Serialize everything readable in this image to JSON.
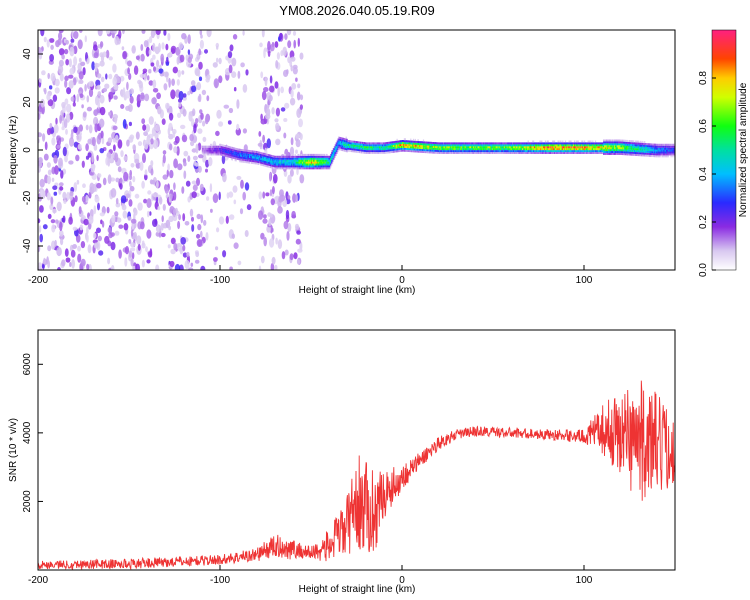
{
  "title": "YM08.2026.040.05.19.R09",
  "chart_data": [
    {
      "type": "heatmap",
      "xlabel": "Height of straight line (km)",
      "ylabel": "Frequency (Hz)",
      "xlim": [
        -200,
        150
      ],
      "ylim": [
        -50,
        50
      ],
      "xticks": [
        -200,
        -100,
        0,
        100
      ],
      "xtick_labels": [
        "-200",
        "-100",
        "0",
        "100"
      ],
      "yticks": [
        -40,
        -20,
        0,
        20,
        40
      ],
      "ytick_labels": [
        "-40",
        "-20",
        "0",
        "20",
        "40"
      ],
      "colorbar": {
        "label": "Normalized spectral amplitude",
        "range": [
          0,
          1
        ],
        "ticks": [
          0,
          0.2,
          0.4,
          0.6,
          0.8
        ],
        "tick_labels": [
          "0.0",
          "0.2",
          "0.4",
          "0.6",
          "0.8"
        ],
        "colormap": "gist_rainbow_r"
      },
      "ridge": {
        "x": [
          -110,
          -100,
          -90,
          -80,
          -70,
          -60,
          -50,
          -40,
          -35,
          -30,
          -20,
          -10,
          0,
          20,
          40,
          60,
          80,
          100,
          120,
          140,
          150
        ],
        "frequency": [
          0,
          0,
          -2,
          -3,
          -5,
          -5,
          -5,
          -5,
          3,
          2,
          1,
          1,
          2,
          1,
          1,
          1,
          1,
          1,
          1,
          0,
          0
        ],
        "amplitude": [
          0.15,
          0.25,
          0.35,
          0.4,
          0.45,
          0.5,
          0.85,
          0.55,
          0.4,
          0.55,
          0.6,
          0.55,
          0.9,
          0.7,
          0.7,
          0.7,
          0.95,
          0.9,
          0.7,
          0.4,
          0.3
        ]
      },
      "noise_region_x": [
        -200,
        -55
      ],
      "grid": false
    },
    {
      "type": "line",
      "xlabel": "Height of straight line (km)",
      "ylabel": "SNR (10 * v/v)",
      "xlim": [
        -200,
        150
      ],
      "ylim": [
        0,
        7000
      ],
      "xticks": [
        -200,
        -100,
        0,
        100
      ],
      "xtick_labels": [
        "-200",
        "-100",
        "0",
        "100"
      ],
      "yticks": [
        2000,
        4000,
        6000
      ],
      "ytick_labels": [
        "2000",
        "4000",
        "6000"
      ],
      "color": "#ee3333",
      "series": [
        {
          "x": [
            -200,
            -150,
            -120,
            -100,
            -80,
            -70,
            -60,
            -50,
            -40,
            -30,
            -25,
            -20,
            -15,
            -10,
            0,
            10,
            20,
            30,
            40,
            60,
            80,
            100,
            110,
            120,
            130,
            140,
            150
          ],
          "y": [
            150,
            180,
            250,
            300,
            450,
            700,
            600,
            500,
            700,
            1300,
            2000,
            1800,
            1700,
            2200,
            2700,
            3200,
            3700,
            3950,
            4050,
            4000,
            3950,
            3900,
            4100,
            4000,
            3800,
            3600,
            3500
          ],
          "spread": [
            120,
            150,
            150,
            150,
            200,
            350,
            300,
            200,
            500,
            900,
            1400,
            1400,
            1200,
            700,
            400,
            250,
            200,
            150,
            150,
            150,
            150,
            200,
            700,
            1300,
            1800,
            1600,
            900
          ]
        }
      ],
      "grid": false
    }
  ]
}
